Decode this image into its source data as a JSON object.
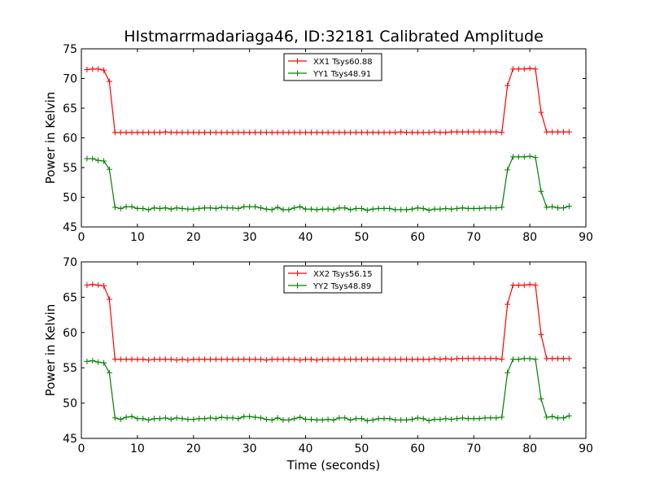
{
  "figure": {
    "title": "HIstmarrmadariaga46, ID:32181 Calibrated Amplitude",
    "xlabel": "Time (seconds)"
  },
  "chart_data": [
    {
      "type": "line",
      "title": "HIstmarrmadariaga46, ID:32181 Calibrated Amplitude",
      "xlabel": "",
      "ylabel": "Power in Kelvin",
      "xlim": [
        0,
        90
      ],
      "ylim": [
        45,
        75
      ],
      "xticks": [
        0,
        10,
        20,
        30,
        40,
        50,
        60,
        70,
        80,
        90
      ],
      "yticks": [
        45,
        50,
        55,
        60,
        65,
        70,
        75
      ],
      "grid": false,
      "legend_position": "top-center",
      "x": [
        1,
        2,
        3,
        4,
        5,
        6,
        7,
        8,
        9,
        10,
        11,
        12,
        13,
        14,
        15,
        16,
        17,
        18,
        19,
        20,
        21,
        22,
        23,
        24,
        25,
        26,
        27,
        28,
        29,
        30,
        31,
        32,
        33,
        34,
        35,
        36,
        37,
        38,
        39,
        40,
        41,
        42,
        43,
        44,
        45,
        46,
        47,
        48,
        49,
        50,
        51,
        52,
        53,
        54,
        55,
        56,
        57,
        58,
        59,
        60,
        61,
        62,
        63,
        64,
        65,
        66,
        67,
        68,
        69,
        70,
        71,
        72,
        73,
        74,
        75,
        76,
        77,
        78,
        79,
        80,
        81,
        82,
        83,
        84,
        85,
        86,
        87
      ],
      "series": [
        {
          "name": "XX1 Tsys60.88",
          "color": "#ff0000",
          "values": [
            71.5,
            71.6,
            71.6,
            71.4,
            69.5,
            60.9,
            60.9,
            60.9,
            60.9,
            60.9,
            60.9,
            60.9,
            60.9,
            60.9,
            61.0,
            60.9,
            60.9,
            60.9,
            60.9,
            60.9,
            60.9,
            60.9,
            60.9,
            60.9,
            60.9,
            60.9,
            60.9,
            60.9,
            60.9,
            60.9,
            60.9,
            60.9,
            60.9,
            60.9,
            60.9,
            60.9,
            60.9,
            60.9,
            60.9,
            60.9,
            60.9,
            60.9,
            60.9,
            60.9,
            60.9,
            60.9,
            60.9,
            60.9,
            60.9,
            60.9,
            60.9,
            60.9,
            60.9,
            60.9,
            60.9,
            60.9,
            61.0,
            60.9,
            60.9,
            60.9,
            60.9,
            60.9,
            61.0,
            60.9,
            60.9,
            61.0,
            61.0,
            61.0,
            61.0,
            61.0,
            61.0,
            61.0,
            61.0,
            61.0,
            60.9,
            68.8,
            71.6,
            71.6,
            71.6,
            71.7,
            71.6,
            64.3,
            61.0,
            61.0,
            61.0,
            61.0,
            61.0
          ]
        },
        {
          "name": "YY1 Tsys48.91",
          "color": "#008000",
          "values": [
            56.5,
            56.5,
            56.2,
            56.1,
            54.7,
            48.3,
            48.1,
            48.4,
            48.4,
            48.1,
            48.1,
            47.9,
            48.2,
            48.1,
            48.2,
            48.0,
            48.2,
            48.1,
            48.0,
            48.0,
            48.1,
            48.2,
            48.2,
            48.1,
            48.3,
            48.2,
            48.2,
            48.1,
            48.4,
            48.4,
            48.4,
            48.2,
            48.0,
            47.9,
            48.3,
            47.9,
            47.9,
            48.2,
            48.4,
            48.0,
            48.0,
            47.9,
            48.0,
            48.0,
            47.9,
            48.2,
            48.2,
            47.9,
            48.1,
            48.1,
            47.8,
            48.0,
            48.1,
            48.1,
            48.1,
            47.9,
            47.9,
            47.9,
            48.0,
            48.2,
            48.1,
            47.8,
            48.0,
            48.0,
            48.1,
            48.0,
            48.1,
            48.2,
            48.1,
            48.1,
            48.1,
            48.2,
            48.2,
            48.2,
            48.3,
            54.6,
            56.8,
            56.8,
            56.8,
            56.9,
            56.7,
            51.0,
            48.3,
            48.4,
            48.2,
            48.2,
            48.5
          ]
        }
      ]
    },
    {
      "type": "line",
      "title": "",
      "xlabel": "Time (seconds)",
      "ylabel": "Power in Kelvin",
      "xlim": [
        0,
        90
      ],
      "ylim": [
        45,
        70
      ],
      "xticks": [
        0,
        10,
        20,
        30,
        40,
        50,
        60,
        70,
        80,
        90
      ],
      "yticks": [
        45,
        50,
        55,
        60,
        65,
        70
      ],
      "grid": false,
      "legend_position": "top-center",
      "x": [
        1,
        2,
        3,
        4,
        5,
        6,
        7,
        8,
        9,
        10,
        11,
        12,
        13,
        14,
        15,
        16,
        17,
        18,
        19,
        20,
        21,
        22,
        23,
        24,
        25,
        26,
        27,
        28,
        29,
        30,
        31,
        32,
        33,
        34,
        35,
        36,
        37,
        38,
        39,
        40,
        41,
        42,
        43,
        44,
        45,
        46,
        47,
        48,
        49,
        50,
        51,
        52,
        53,
        54,
        55,
        56,
        57,
        58,
        59,
        60,
        61,
        62,
        63,
        64,
        65,
        66,
        67,
        68,
        69,
        70,
        71,
        72,
        73,
        74,
        75,
        76,
        77,
        78,
        79,
        80,
        81,
        82,
        83,
        84,
        85,
        86,
        87
      ],
      "series": [
        {
          "name": "XX2 Tsys56.15",
          "color": "#ff0000",
          "values": [
            66.7,
            66.8,
            66.7,
            66.6,
            64.7,
            56.2,
            56.2,
            56.2,
            56.2,
            56.2,
            56.2,
            56.1,
            56.2,
            56.2,
            56.2,
            56.2,
            56.1,
            56.2,
            56.1,
            56.2,
            56.2,
            56.2,
            56.2,
            56.2,
            56.2,
            56.2,
            56.2,
            56.2,
            56.2,
            56.2,
            56.2,
            56.2,
            56.1,
            56.2,
            56.2,
            56.2,
            56.2,
            56.2,
            56.1,
            56.2,
            56.2,
            56.1,
            56.2,
            56.2,
            56.2,
            56.2,
            56.2,
            56.2,
            56.2,
            56.2,
            56.2,
            56.2,
            56.2,
            56.2,
            56.2,
            56.2,
            56.2,
            56.2,
            56.2,
            56.2,
            56.2,
            56.2,
            56.3,
            56.2,
            56.3,
            56.2,
            56.3,
            56.3,
            56.3,
            56.3,
            56.3,
            56.3,
            56.3,
            56.3,
            56.2,
            64.0,
            66.7,
            66.7,
            66.7,
            66.8,
            66.7,
            59.7,
            56.3,
            56.3,
            56.3,
            56.3,
            56.3
          ]
        },
        {
          "name": "YY2 Tsys48.89",
          "color": "#008000",
          "values": [
            55.9,
            56.0,
            55.8,
            55.7,
            54.3,
            47.9,
            47.7,
            48.0,
            48.1,
            47.8,
            47.8,
            47.6,
            47.8,
            47.8,
            47.9,
            47.7,
            47.9,
            47.8,
            47.7,
            47.7,
            47.8,
            47.8,
            47.9,
            47.8,
            48.0,
            47.9,
            47.9,
            47.8,
            48.1,
            48.1,
            48.0,
            47.9,
            47.7,
            47.6,
            47.9,
            47.6,
            47.6,
            47.8,
            48.0,
            47.7,
            47.7,
            47.6,
            47.6,
            47.7,
            47.6,
            47.9,
            47.9,
            47.6,
            47.8,
            47.8,
            47.5,
            47.6,
            47.8,
            47.8,
            47.8,
            47.6,
            47.6,
            47.6,
            47.7,
            47.9,
            47.8,
            47.5,
            47.7,
            47.7,
            47.8,
            47.7,
            47.8,
            47.9,
            47.8,
            47.8,
            47.8,
            47.9,
            47.9,
            47.9,
            48.0,
            54.3,
            56.2,
            56.2,
            56.3,
            56.3,
            56.2,
            50.6,
            48.0,
            48.1,
            47.9,
            47.9,
            48.2
          ]
        }
      ]
    }
  ]
}
